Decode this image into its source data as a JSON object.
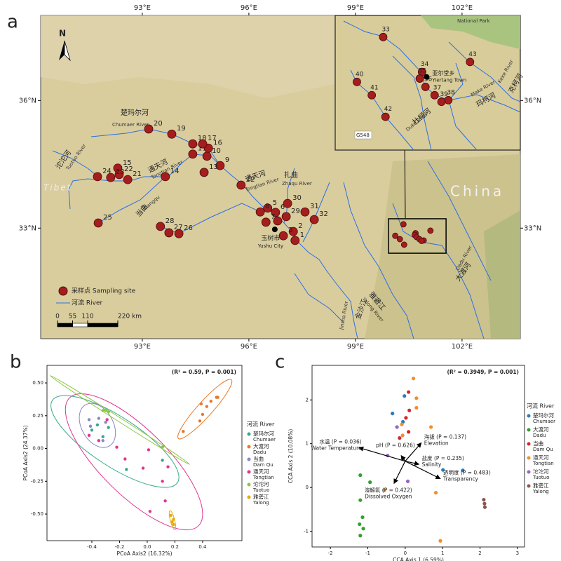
{
  "chart_data": [
    {
      "type": "map",
      "panel": "a",
      "xlim": [
        90.14,
        103.64
      ],
      "ylim": [
        30.4,
        38.0
      ],
      "xticks": [
        {
          "value": 93,
          "label": "93°E"
        },
        {
          "value": 96,
          "label": "96°E"
        },
        {
          "value": 99,
          "label": "99°E"
        },
        {
          "value": 102,
          "label": "102°E"
        }
      ],
      "yticks": [
        {
          "value": 33,
          "label": "33°N"
        },
        {
          "value": 36,
          "label": "36°N"
        }
      ],
      "series": [
        {
          "name": "采样点 Sampling site",
          "color": "#a51d1d",
          "labels": [
            1,
            2,
            3,
            4,
            5,
            6,
            7,
            8,
            9,
            10,
            11,
            12,
            13,
            14,
            15,
            16,
            17,
            18,
            19,
            20,
            21,
            22,
            23,
            24,
            25,
            26,
            27,
            28,
            29,
            30,
            31,
            32,
            33,
            34,
            35,
            36,
            37,
            38,
            39,
            40,
            41,
            42,
            43
          ],
          "x": [
            97.3,
            97.25,
            96.97,
            96.81,
            96.53,
            96.75,
            96.48,
            96.32,
            95.19,
            94.82,
            94.42,
            95.78,
            94.74,
            93.65,
            92.31,
            94.86,
            94.7,
            94.42,
            93.83,
            93.18,
            92.59,
            92.35,
            92.11,
            91.74,
            91.76,
            94.03,
            93.75,
            93.51,
            97.05,
            97.09,
            97.58,
            97.84,
            100.35,
            100.69,
            100.67,
            100.72,
            100.8,
            100.92,
            100.86,
            100.12,
            100.25,
            100.37,
            101.11
          ],
          "values": [
            32.71,
            32.92,
            32.82,
            33.17,
            33.47,
            33.37,
            33.14,
            33.38,
            34.47,
            34.69,
            34.74,
            34.01,
            34.31,
            34.21,
            34.41,
            34.88,
            34.98,
            34.98,
            35.21,
            35.33,
            34.14,
            34.26,
            34.19,
            34.21,
            33.12,
            32.87,
            32.89,
            33.04,
            33.27,
            33.58,
            33.38,
            33.2,
            33.09,
            32.88,
            32.84,
            32.79,
            32.74,
            32.71,
            32.7,
            32.82,
            32.74,
            32.61,
            32.94
          ]
        }
      ],
      "river_legend": "河流 River",
      "river_color": "#2d6fe0",
      "places": [
        {
          "label": "玉树市",
          "sub": "Yushu City",
          "x": 96.73,
          "y": 32.97
        },
        {
          "label": "亚尔堂乡",
          "sub": "Yiertang Town",
          "x": 100.73,
          "y": 32.85
        }
      ],
      "inset": {
        "xlim": [
          99.93,
          101.55
        ],
        "ylim": [
          32.41,
          33.22
        ]
      },
      "scale_bar": {
        "ticks": [
          0,
          55,
          110,
          {
            "value": 220,
            "label": "220 km"
          }
        ]
      },
      "north": "N",
      "map_labels": [
        "楚玛尔河",
        "Chumaer River",
        "沱沱河",
        "Tuotuo River",
        "通天河",
        "Tongtian River",
        "通天河",
        "Tongtian River",
        "当曲",
        "Dangqu",
        "扎曲",
        "Zhaqu River",
        "雅砻江",
        "Yalong River",
        "金沙江",
        "Jinsha River",
        "大渡河",
        "Dadu River",
        "China",
        "Tibet",
        "National Park",
        "G548",
        "杜柯河",
        "Duke River",
        "玛柯河",
        "Make River",
        "克柯河",
        "Keke River"
      ]
    },
    {
      "type": "scatter",
      "panel": "b",
      "annotation": "(R² = 0.59, P = 0.001)",
      "xlabel": "PCoA Axis2 (16.32%)",
      "ylabel": "PCoA Axis2 (24.37%)",
      "xlim": [
        -0.724,
        0.684
      ],
      "ylim": [
        -0.703,
        0.634
      ],
      "xticks": [
        -0.4,
        -0.2,
        {
          "value": 0,
          "label": "0.0"
        },
        0.2,
        0.4
      ],
      "yticks": [
        {
          "value": -0.5,
          "label": "-0.50"
        },
        {
          "value": -0.25,
          "label": "-0.25"
        },
        {
          "value": 0,
          "label": "0.00"
        },
        {
          "value": 0.25,
          "label": "0.25"
        },
        {
          "value": 0.5,
          "label": "0.50"
        }
      ],
      "legend_title": "河流 River",
      "ellipses": true,
      "series": [
        {
          "name": "楚玛尔河",
          "name_en": "Chumaer",
          "color": "#36a98a",
          "x": [
            -0.4,
            -0.36,
            -0.32,
            -0.28,
            -0.15,
            0.11
          ],
          "values": [
            0.14,
            0.18,
            0.09,
            0.16,
            -0.16,
            -0.09
          ]
        },
        {
          "name": "大渡河",
          "name_en": "Dadu",
          "color": "#e8792b",
          "x": [
            0.39,
            0.43,
            0.46,
            0.5,
            0.51,
            0.38,
            0.26,
            0.4
          ],
          "values": [
            0.34,
            0.32,
            0.36,
            0.39,
            0.39,
            0.21,
            0.13,
            0.26
          ]
        },
        {
          "name": "当曲",
          "name_en": "Dam Qu",
          "color": "#8a87c8",
          "x": [
            -0.42,
            -0.41,
            -0.35,
            -0.3,
            -0.32
          ],
          "values": [
            0.22,
            0.17,
            0.23,
            0.2,
            0.06
          ]
        },
        {
          "name": "通天河",
          "name_en": "Tongtian",
          "color": "#e2358f",
          "x": [
            -0.42,
            -0.35,
            -0.29,
            -0.22,
            -0.16,
            -0.03,
            0.01,
            0.11,
            0.13,
            0.02,
            0.15
          ],
          "values": [
            0.1,
            0.06,
            0.22,
            0.01,
            -0.08,
            -0.15,
            -0.01,
            -0.25,
            -0.4,
            -0.48,
            -0.14
          ]
        },
        {
          "name": "沱沱河",
          "name_en": "Tuotuo",
          "color": "#8cc63f",
          "x": [
            -0.32,
            -0.3,
            -0.28,
            0.11
          ],
          "values": [
            0.29,
            0.29,
            0.28,
            0.01
          ]
        },
        {
          "name": "雅砻江",
          "name_en": "Yalong",
          "color": "#e6ab02",
          "x": [
            0.17,
            0.19,
            0.18,
            0.19
          ],
          "values": [
            -0.51,
            -0.54,
            -0.56,
            -0.58
          ]
        }
      ]
    },
    {
      "type": "scatter",
      "panel": "c",
      "annotation": "(R² = 0.3949, P = 0.001)",
      "xlabel": "CCA Axis 1 (6.59%)",
      "ylabel": "CCA Axis 2 (10.08%)",
      "xlim": [
        -2.49,
        3.19
      ],
      "ylim": [
        -1.36,
        2.79
      ],
      "xticks": [
        -2,
        -1,
        0,
        1,
        2,
        3
      ],
      "yticks": [
        -1,
        0,
        1,
        2
      ],
      "legend_title": "河流 River",
      "arrow_origin": [
        0,
        0.6
      ],
      "arrows": [
        {
          "label": "海拔 (P = 0.137)",
          "label_en": "Elevation",
          "x": 0.43,
          "y": 1.02
        },
        {
          "label": "盐度 (P = 0.235)",
          "label_en": "Salinity",
          "x": 0.37,
          "y": 0.53
        },
        {
          "label": "透明度 (P = 0.483)",
          "label_en": "Transparency",
          "x": 0.94,
          "y": 0.2
        },
        {
          "label": "水温 (P = 0.036)",
          "label_en": "Water Temperature",
          "x": -1.24,
          "y": 0.91
        },
        {
          "label": "溶解氧 (P = 0.422)",
          "label_en": "Dissolved Oxygen",
          "x": -0.3,
          "y": 0.09
        },
        {
          "label": "pH (P = 0.626)",
          "label_en": "",
          "x": -0.11,
          "y": 0.73
        }
      ],
      "series": [
        {
          "name": "楚玛尔河",
          "name_en": "Chumaer",
          "color": "#2b7bba",
          "x": [
            -0.34,
            -0.02,
            -0.06,
            1.01,
            1.54
          ],
          "values": [
            1.69,
            2.09,
            1.5,
            0.4,
            0.39
          ]
        },
        {
          "name": "大渡河",
          "name_en": "Dadu",
          "color": "#33a02c",
          "x": [
            -1.2,
            -0.94,
            -1.2,
            -1.14,
            -1.22,
            -1.12,
            -1.2
          ],
          "values": [
            0.28,
            0.12,
            -0.29,
            -0.68,
            -0.84,
            -0.94,
            -1.1
          ]
        },
        {
          "name": "当曲",
          "name_en": "Dam Qu",
          "color": "#d62728",
          "x": [
            0.09,
            0.11,
            0.02,
            0.09,
            -0.15,
            -0.06
          ],
          "values": [
            2.18,
            1.76,
            1.59,
            1.27,
            1.13,
            0.66
          ]
        },
        {
          "name": "通天河",
          "name_en": "Tongtian",
          "color": "#f28e2b",
          "x": [
            0.22,
            0.3,
            -0.09,
            -0.07,
            0.3,
            0.69,
            0.82,
            0.94,
            -0.56
          ],
          "values": [
            2.49,
            2.04,
            1.44,
            1.19,
            1.82,
            1.38,
            -0.12,
            -1.22,
            -0.06
          ]
        },
        {
          "name": "沱沱河",
          "name_en": "Tuotuo",
          "color": "#9467bd",
          "x": [
            -0.22,
            -0.47,
            0.07
          ],
          "values": [
            1.38,
            0.73,
            0.14
          ]
        },
        {
          "name": "雅砻江",
          "name_en": "Yalong",
          "color": "#8c564b",
          "x": [
            2.1,
            2.12,
            2.13
          ],
          "values": [
            -0.28,
            -0.37,
            -0.45
          ]
        }
      ]
    }
  ]
}
